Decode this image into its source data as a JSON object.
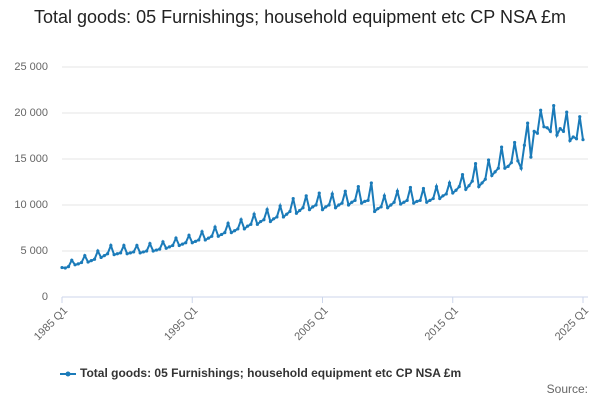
{
  "chart_data": {
    "type": "line",
    "title": "Total goods: 05 Furnishings; household equipment etc CP NSA £m",
    "source": "Source:",
    "categories": [
      "1985 Q1",
      null,
      null,
      null,
      null,
      null,
      null,
      null,
      null,
      null,
      null,
      null,
      null,
      null,
      null,
      null,
      null,
      null,
      null,
      null,
      null,
      null,
      null,
      null,
      null,
      null,
      null,
      null,
      null,
      null,
      null,
      null,
      null,
      null,
      null,
      null,
      null,
      null,
      null,
      null,
      "1995 Q1",
      null,
      null,
      null,
      null,
      null,
      null,
      null,
      null,
      null,
      null,
      null,
      null,
      null,
      null,
      null,
      null,
      null,
      null,
      null,
      null,
      null,
      null,
      null,
      null,
      null,
      null,
      null,
      null,
      null,
      null,
      null,
      null,
      null,
      null,
      null,
      null,
      null,
      null,
      null,
      "2005 Q1",
      null,
      null,
      null,
      null,
      null,
      null,
      null,
      null,
      null,
      null,
      null,
      null,
      null,
      null,
      null,
      null,
      null,
      null,
      null,
      null,
      null,
      null,
      null,
      null,
      null,
      null,
      null,
      null,
      null,
      null,
      null,
      null,
      null,
      null,
      null,
      null,
      null,
      null,
      null,
      "2015 Q1",
      null,
      null,
      null,
      null,
      null,
      null,
      null,
      null,
      null,
      null,
      null,
      null,
      null,
      null,
      null,
      null,
      null,
      null,
      null,
      null,
      null,
      null,
      null,
      null,
      null,
      null,
      null,
      null,
      null,
      null,
      null,
      null,
      null,
      null,
      null,
      null,
      null,
      null,
      null,
      "2025 Q1"
    ],
    "series": [
      {
        "name": "Total goods: 05 Furnishings; household equipment etc CP NSA £m",
        "color": "#1b7bb9",
        "values": [
          3200,
          3150,
          3300,
          4000,
          3500,
          3600,
          3750,
          4500,
          3800,
          3950,
          4100,
          5000,
          4300,
          4500,
          4700,
          5600,
          4600,
          4700,
          4800,
          5600,
          4700,
          4800,
          4900,
          5600,
          4800,
          4900,
          5000,
          5800,
          5000,
          5100,
          5200,
          6000,
          5300,
          5450,
          5600,
          6400,
          5600,
          5750,
          5900,
          6700,
          5900,
          6050,
          6200,
          7100,
          6200,
          6400,
          6600,
          7600,
          6600,
          6800,
          7000,
          8000,
          7000,
          7200,
          7400,
          8400,
          7400,
          7700,
          7900,
          9000,
          7900,
          8200,
          8400,
          9500,
          8200,
          8500,
          8700,
          9900,
          8700,
          9000,
          9300,
          10700,
          9100,
          9400,
          9700,
          11000,
          9500,
          9800,
          10000,
          11300,
          9500,
          9800,
          10000,
          11200,
          9700,
          10000,
          10200,
          11500,
          10000,
          10300,
          10500,
          12000,
          10200,
          10400,
          10500,
          12400,
          9300,
          9600,
          9800,
          11000,
          9700,
          10000,
          10300,
          11500,
          10100,
          10300,
          10500,
          11900,
          10200,
          10400,
          10500,
          11800,
          10300,
          10500,
          10700,
          12000,
          10700,
          11000,
          11200,
          12400,
          11300,
          11600,
          12000,
          13300,
          11700,
          12100,
          12600,
          14500,
          12000,
          12400,
          12800,
          14900,
          13200,
          13600,
          14000,
          16300,
          14000,
          14200,
          14600,
          16800,
          14800,
          14000,
          16500,
          18900,
          15200,
          18000,
          17800,
          20300,
          18500,
          18400,
          18000,
          20800,
          17600,
          18300,
          18000,
          20100,
          17000,
          17400,
          17200,
          19600,
          17100
        ]
      }
    ],
    "ylim": [
      0,
      25000
    ],
    "yticks": [
      0,
      {
        "value": 5000,
        "label": "5 000"
      },
      {
        "value": 10000,
        "label": "10 000"
      },
      {
        "value": 15000,
        "label": "15 000"
      },
      {
        "value": 20000,
        "label": "20 000"
      },
      {
        "value": 25000,
        "label": "25 000"
      }
    ],
    "grid": true,
    "legend": "bottom"
  }
}
